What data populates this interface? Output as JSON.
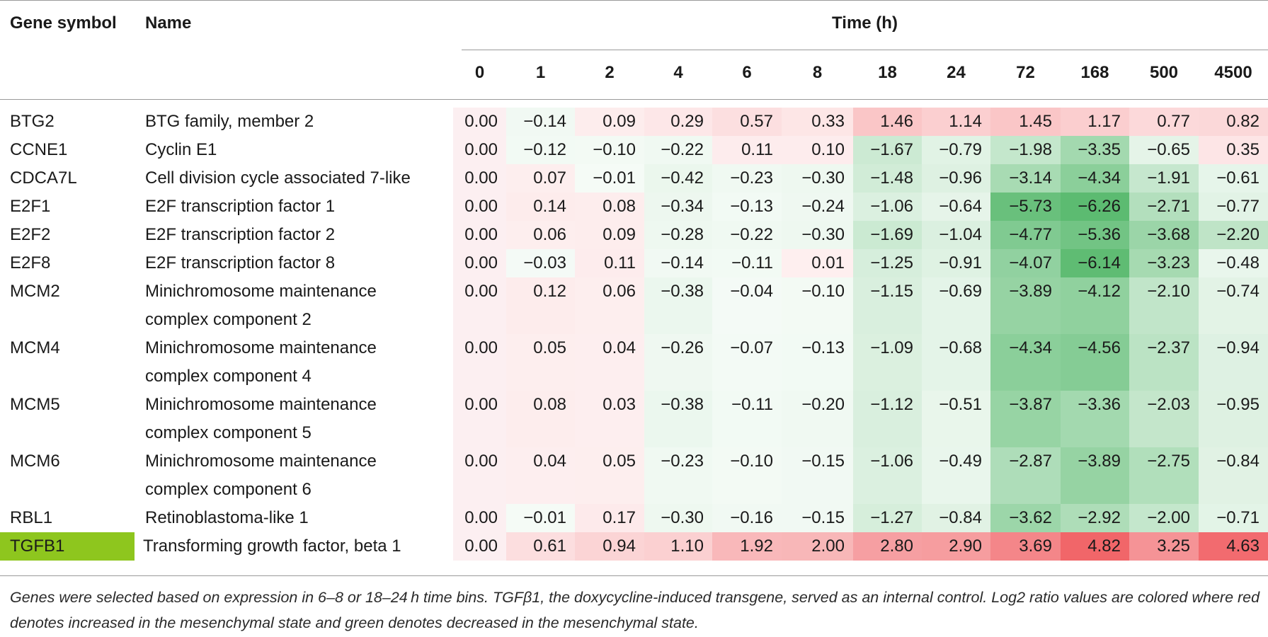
{
  "headers": {
    "gene_symbol": "Gene symbol",
    "name": "Name",
    "time": "Time (h)"
  },
  "time_points": [
    "0",
    "1",
    "2",
    "4",
    "6",
    "8",
    "18",
    "24",
    "72",
    "168",
    "500",
    "4500"
  ],
  "rows": [
    {
      "gene": "BTG2",
      "name": [
        "BTG family, member 2"
      ],
      "values": [
        "0.00",
        "−0.14",
        "0.09",
        "0.29",
        "0.57",
        "0.33",
        "1.46",
        "1.14",
        "1.45",
        "1.17",
        "0.77",
        "0.82"
      ]
    },
    {
      "gene": "CCNE1",
      "name": [
        "Cyclin E1"
      ],
      "values": [
        "0.00",
        "−0.12",
        "−0.10",
        "−0.22",
        "0.11",
        "0.10",
        "−1.67",
        "−0.79",
        "−1.98",
        "−3.35",
        "−0.65",
        "0.35"
      ]
    },
    {
      "gene": "CDCA7L",
      "name": [
        "Cell division cycle associated 7-like"
      ],
      "values": [
        "0.00",
        "0.07",
        "−0.01",
        "−0.42",
        "−0.23",
        "−0.30",
        "−1.48",
        "−0.96",
        "−3.14",
        "−4.34",
        "−1.91",
        "−0.61"
      ]
    },
    {
      "gene": "E2F1",
      "name": [
        "E2F transcription factor 1"
      ],
      "values": [
        "0.00",
        "0.14",
        "0.08",
        "−0.34",
        "−0.13",
        "−0.24",
        "−1.06",
        "−0.64",
        "−5.73",
        "−6.26",
        "−2.71",
        "−0.77"
      ]
    },
    {
      "gene": "E2F2",
      "name": [
        "E2F transcription factor 2"
      ],
      "values": [
        "0.00",
        "0.06",
        "0.09",
        "−0.28",
        "−0.22",
        "−0.30",
        "−1.69",
        "−1.04",
        "−4.77",
        "−5.36",
        "−3.68",
        "−2.20"
      ]
    },
    {
      "gene": "E2F8",
      "name": [
        "E2F transcription factor 8"
      ],
      "values": [
        "0.00",
        "−0.03",
        "0.11",
        "−0.14",
        "−0.11",
        "0.01",
        "−1.25",
        "−0.91",
        "−4.07",
        "−6.14",
        "−3.23",
        "−0.48"
      ]
    },
    {
      "gene": "MCM2",
      "name": [
        "Minichromosome maintenance",
        "complex component 2"
      ],
      "values": [
        "0.00",
        "0.12",
        "0.06",
        "−0.38",
        "−0.04",
        "−0.10",
        "−1.15",
        "−0.69",
        "−3.89",
        "−4.12",
        "−2.10",
        "−0.74"
      ]
    },
    {
      "gene": "MCM4",
      "name": [
        "Minichromosome maintenance",
        "complex component 4"
      ],
      "values": [
        "0.00",
        "0.05",
        "0.04",
        "−0.26",
        "−0.07",
        "−0.13",
        "−1.09",
        "−0.68",
        "−4.34",
        "−4.56",
        "−2.37",
        "−0.94"
      ]
    },
    {
      "gene": "MCM5",
      "name": [
        "Minichromosome maintenance",
        "complex component 5"
      ],
      "values": [
        "0.00",
        "0.08",
        "0.03",
        "−0.38",
        "−0.11",
        "−0.20",
        "−1.12",
        "−0.51",
        "−3.87",
        "−3.36",
        "−2.03",
        "−0.95"
      ]
    },
    {
      "gene": "MCM6",
      "name": [
        "Minichromosome maintenance",
        "complex component 6"
      ],
      "values": [
        "0.00",
        "0.04",
        "0.05",
        "−0.23",
        "−0.10",
        "−0.15",
        "−1.06",
        "−0.49",
        "−2.87",
        "−3.89",
        "−2.75",
        "−0.84"
      ]
    },
    {
      "gene": "RBL1",
      "name": [
        "Retinoblastoma-like 1"
      ],
      "values": [
        "0.00",
        "−0.01",
        "0.17",
        "−0.30",
        "−0.16",
        "−0.15",
        "−1.27",
        "−0.84",
        "−3.62",
        "−2.92",
        "−2.00",
        "−0.71"
      ]
    },
    {
      "gene": "TGFB1",
      "name": [
        "Transforming growth factor, beta 1"
      ],
      "values": [
        "0.00",
        "0.61",
        "0.94",
        "1.10",
        "1.92",
        "2.00",
        "2.80",
        "2.90",
        "3.69",
        "4.82",
        "3.25",
        "4.63"
      ],
      "highlight": "#8ec61e"
    }
  ],
  "colors": {
    "up": "#f05a5e",
    "down": "#46b25e",
    "highlight": "#8ec61e"
  },
  "footnote": "Genes were selected based on expression in 6–8 or 18–24 h time bins. TGFβ1, the doxycycline-induced transgene, served as an internal control. Log2 ratio values are colored where red denotes increased in the mesenchymal state and green denotes decreased in the mesenchymal state."
}
